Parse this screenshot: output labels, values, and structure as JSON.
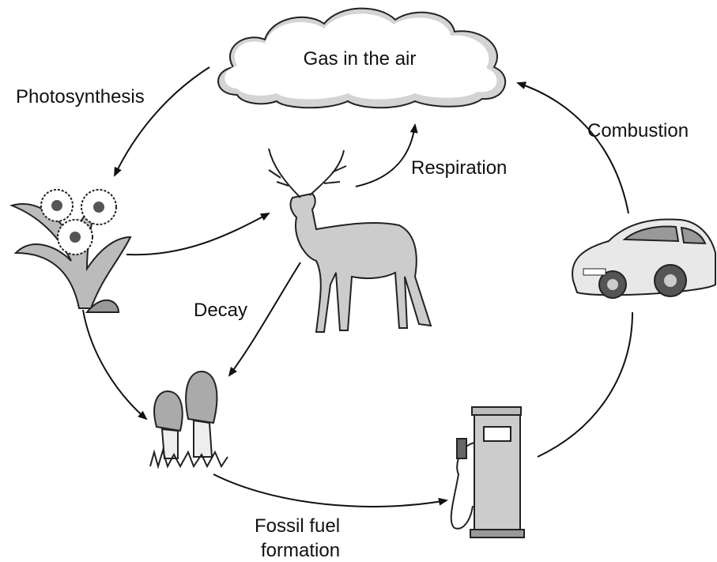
{
  "cloud": {
    "label": "Gas in the air"
  },
  "processes": {
    "photosynthesis": "Photosynthesis",
    "respiration": "Respiration",
    "combustion": "Combustion",
    "decay": "Decay",
    "fossil_fuel_formation": [
      "Fossil fuel",
      "formation"
    ]
  }
}
